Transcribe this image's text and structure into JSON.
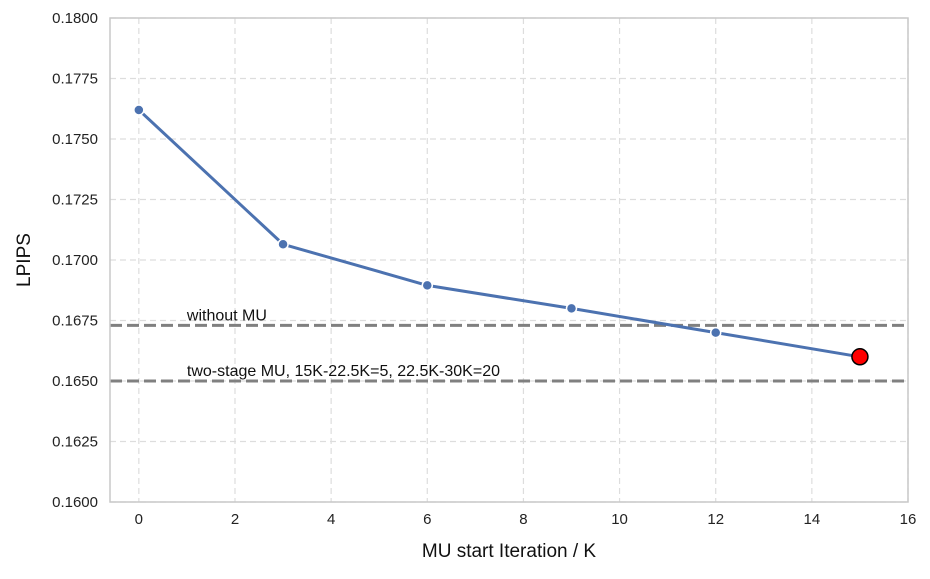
{
  "chart_data": {
    "type": "line",
    "xlabel": "MU start Iteration / K",
    "ylabel": "LPIPS",
    "xlim": [
      -0.6,
      16
    ],
    "ylim": [
      0.16,
      0.18
    ],
    "xticks": [
      0,
      2,
      4,
      6,
      8,
      10,
      12,
      14,
      16
    ],
    "yticks": [
      0.16,
      0.1625,
      0.165,
      0.1675,
      0.17,
      0.1725,
      0.175,
      0.1775,
      0.18
    ],
    "ytick_labels": [
      "0.1600",
      "0.1625",
      "0.1650",
      "0.1675",
      "0.1700",
      "0.1725",
      "0.1750",
      "0.1775",
      "0.1800"
    ],
    "grid": true,
    "series": [
      {
        "x": [
          0,
          3,
          6,
          9,
          12,
          15
        ],
        "y": [
          0.1762,
          0.17065,
          0.16895,
          0.168,
          0.167,
          0.166
        ],
        "color": "#4c72b0"
      }
    ],
    "highlight_point": {
      "x": 15,
      "y": 0.166,
      "color": "#ff0000"
    },
    "reference_lines": [
      {
        "y": 0.1673,
        "label": "without MU",
        "color": "#808080"
      },
      {
        "y": 0.165,
        "label": "two-stage MU, 15K-22.5K=5, 22.5K-30K=20",
        "color": "#808080"
      }
    ]
  }
}
